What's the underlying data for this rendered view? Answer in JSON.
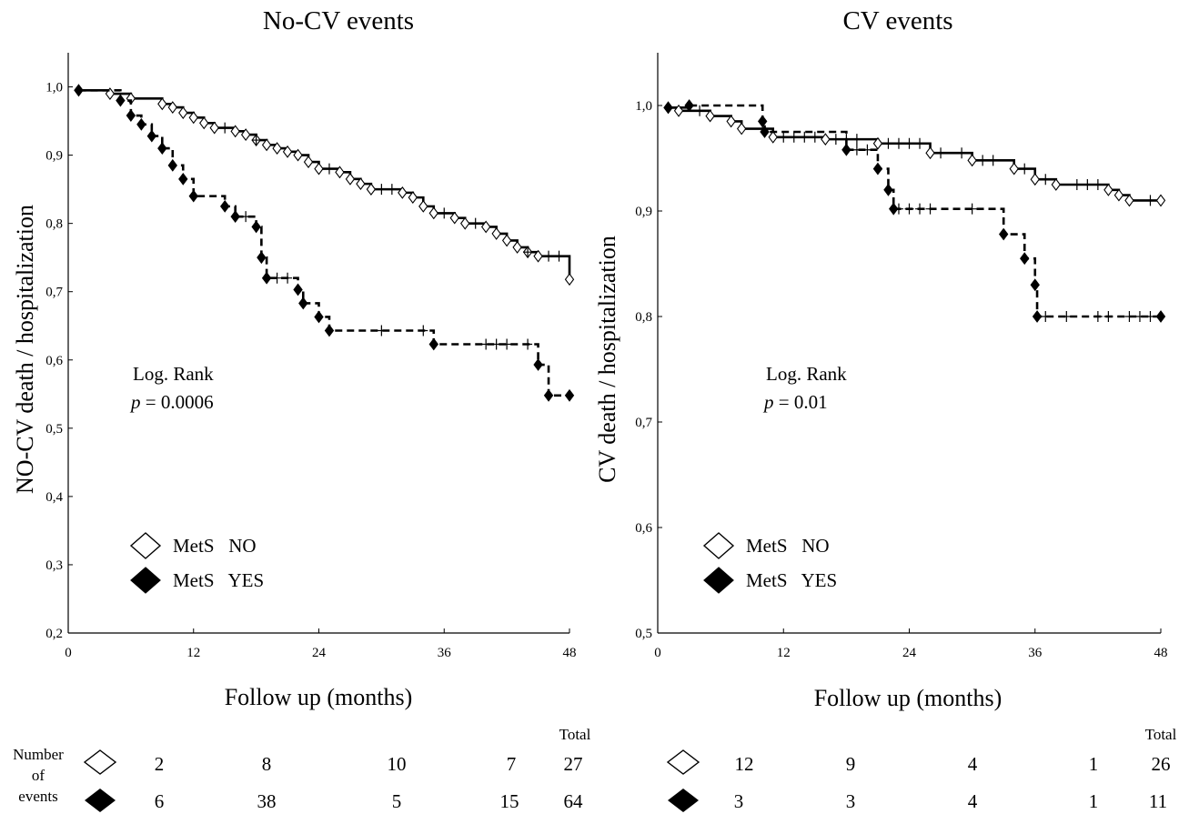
{
  "colors": {
    "ink": "#000000",
    "background": "#ffffff"
  },
  "icons": {
    "no_group": "open-diamond-icon",
    "yes_group": "filled-diamond-icon",
    "censor": "plus-censor-icon"
  },
  "panels": [
    {
      "id": "left",
      "title": "No-CV events",
      "ylabel": "NO-CV death / hospitalization",
      "xlabel": "Follow up (months)",
      "stat_label": "Log. Rank",
      "stat_p_symbol": "p",
      "stat_p_value": " = 0.0006",
      "legend": [
        {
          "label": "MetS   NO"
        },
        {
          "label": "MetS   YES"
        }
      ]
    },
    {
      "id": "right",
      "title": "CV events",
      "ylabel": "CV death / hospitalization",
      "xlabel": "Follow up (months)",
      "stat_label": "Log. Rank",
      "stat_p_symbol": "p",
      "stat_p_value": " = 0.01",
      "legend": [
        {
          "label": "MetS   NO"
        },
        {
          "label": "MetS   YES"
        }
      ]
    }
  ],
  "events_table": {
    "row_label": [
      "Number",
      "of",
      "events"
    ],
    "total_label": "Total",
    "left": {
      "no": [
        "2",
        "8",
        "10",
        "7",
        "27"
      ],
      "yes": [
        "6",
        "38",
        "5",
        "15",
        "64"
      ]
    },
    "right": {
      "no": [
        "12",
        "9",
        "4",
        "1",
        "26"
      ],
      "yes": [
        "3",
        "3",
        "4",
        "1",
        "11"
      ]
    }
  },
  "chart_data": [
    {
      "type": "line",
      "subtype": "kaplan-meier-step",
      "title": "No-CV events",
      "xlabel": "Follow up (months)",
      "ylabel": "NO-CV death / hospitalization",
      "xlim": [
        0,
        48
      ],
      "ylim": [
        0.2,
        1.05
      ],
      "xticks": [
        0,
        12,
        24,
        36,
        48
      ],
      "xtick_labels": [
        "0",
        "12",
        "24",
        "36",
        "48"
      ],
      "yticks": [
        0.2,
        0.3,
        0.4,
        0.5,
        0.6,
        0.7,
        0.8,
        0.9,
        1.0
      ],
      "ytick_labels": [
        "0,2",
        "0,3",
        "0,4",
        "0,5",
        "0,6",
        "0,7",
        "0,8",
        "0,9",
        "1,0"
      ],
      "grid": false,
      "legend_position": "bottom-left",
      "annotations": [
        {
          "text": "Log. Rank p = 0.0006"
        }
      ],
      "series": [
        {
          "name": "MetS NO",
          "line_style": "solid",
          "marker": "open-diamond",
          "steps": [
            [
              1,
              0.995
            ],
            [
              4,
              0.99
            ],
            [
              6,
              0.983
            ],
            [
              9,
              0.975
            ],
            [
              10,
              0.97
            ],
            [
              11,
              0.962
            ],
            [
              12,
              0.955
            ],
            [
              13,
              0.947
            ],
            [
              14,
              0.94
            ],
            [
              16,
              0.935
            ],
            [
              17,
              0.93
            ],
            [
              18,
              0.922
            ],
            [
              19,
              0.915
            ],
            [
              20,
              0.91
            ],
            [
              21,
              0.905
            ],
            [
              22,
              0.9
            ],
            [
              23,
              0.89
            ],
            [
              24,
              0.88
            ],
            [
              26,
              0.875
            ],
            [
              27,
              0.865
            ],
            [
              28,
              0.858
            ],
            [
              29,
              0.85
            ],
            [
              32,
              0.845
            ],
            [
              33,
              0.838
            ],
            [
              34,
              0.825
            ],
            [
              35,
              0.815
            ],
            [
              37,
              0.808
            ],
            [
              38,
              0.8
            ],
            [
              40,
              0.795
            ],
            [
              41,
              0.785
            ],
            [
              42,
              0.775
            ],
            [
              43,
              0.765
            ],
            [
              44,
              0.758
            ],
            [
              45,
              0.752
            ],
            [
              48,
              0.718
            ]
          ],
          "censored": [
            15,
            18,
            25,
            30,
            31,
            36,
            39,
            44,
            46,
            47
          ]
        },
        {
          "name": "MetS YES",
          "line_style": "dashed",
          "marker": "filled-diamond",
          "steps": [
            [
              1,
              0.995
            ],
            [
              5,
              0.98
            ],
            [
              6,
              0.958
            ],
            [
              7,
              0.945
            ],
            [
              8,
              0.928
            ],
            [
              9,
              0.91
            ],
            [
              10,
              0.885
            ],
            [
              11,
              0.865
            ],
            [
              12,
              0.84
            ],
            [
              15,
              0.825
            ],
            [
              16,
              0.81
            ],
            [
              18,
              0.795
            ],
            [
              18.5,
              0.75
            ],
            [
              19,
              0.72
            ],
            [
              22,
              0.703
            ],
            [
              22.5,
              0.683
            ],
            [
              24,
              0.663
            ],
            [
              25,
              0.643
            ],
            [
              35,
              0.623
            ],
            [
              45,
              0.593
            ],
            [
              46,
              0.548
            ],
            [
              48,
              0.548
            ]
          ],
          "censored": [
            17,
            20,
            21,
            30,
            34,
            40,
            41,
            42,
            44
          ]
        }
      ]
    },
    {
      "type": "line",
      "subtype": "kaplan-meier-step",
      "title": "CV events",
      "xlabel": "Follow up (months)",
      "ylabel": "CV death / hospitalization",
      "xlim": [
        0,
        48
      ],
      "ylim": [
        0.5,
        1.05
      ],
      "xticks": [
        0,
        12,
        24,
        36,
        48
      ],
      "xtick_labels": [
        "0",
        "12",
        "24",
        "36",
        "48"
      ],
      "yticks": [
        0.5,
        0.6,
        0.7,
        0.8,
        0.9,
        1.0
      ],
      "ytick_labels": [
        "0,5",
        "0,6",
        "0,7",
        "0,8",
        "0,9",
        "1,0"
      ],
      "grid": false,
      "legend_position": "bottom-left",
      "annotations": [
        {
          "text": "Log. Rank p = 0.01"
        }
      ],
      "series": [
        {
          "name": "MetS NO",
          "line_style": "solid",
          "marker": "open-diamond",
          "steps": [
            [
              1,
              0.998
            ],
            [
              2,
              0.995
            ],
            [
              5,
              0.99
            ],
            [
              7,
              0.985
            ],
            [
              8,
              0.978
            ],
            [
              11,
              0.97
            ],
            [
              16,
              0.968
            ],
            [
              21,
              0.964
            ],
            [
              26,
              0.955
            ],
            [
              30,
              0.948
            ],
            [
              34,
              0.94
            ],
            [
              36,
              0.93
            ],
            [
              38,
              0.925
            ],
            [
              43,
              0.92
            ],
            [
              44,
              0.915
            ],
            [
              45,
              0.91
            ],
            [
              48,
              0.91
            ]
          ],
          "censored": [
            4,
            10,
            12,
            13,
            14,
            15,
            17,
            18,
            19,
            22,
            23,
            24,
            25,
            27,
            29,
            31,
            32,
            35,
            37,
            40,
            41,
            42,
            47
          ]
        },
        {
          "name": "MetS YES",
          "line_style": "dashed",
          "marker": "filled-diamond",
          "steps": [
            [
              1,
              0.998
            ],
            [
              3,
              1.0
            ],
            [
              10,
              0.985
            ],
            [
              10.2,
              0.975
            ],
            [
              18,
              0.958
            ],
            [
              21,
              0.94
            ],
            [
              22,
              0.92
            ],
            [
              22.5,
              0.902
            ],
            [
              33,
              0.878
            ],
            [
              35,
              0.855
            ],
            [
              36,
              0.83
            ],
            [
              36.2,
              0.8
            ],
            [
              48,
              0.8
            ]
          ],
          "censored": [
            19,
            20,
            23,
            24,
            25,
            26,
            30,
            37,
            39,
            42,
            43,
            45,
            46,
            47
          ]
        }
      ]
    }
  ]
}
